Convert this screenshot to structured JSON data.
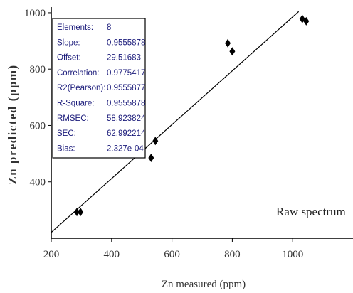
{
  "chart_data": {
    "type": "scatter",
    "xlabel": "Zn measured (ppm)",
    "ylabel": "Zn predicted (ppm)",
    "xlim": [
      200,
      1200
    ],
    "ylim": [
      200,
      1020
    ],
    "x_ticks": [
      "200",
      "400",
      "600",
      "800",
      "1000"
    ],
    "y_ticks": [
      "400",
      "600",
      "800",
      "1000"
    ],
    "points": [
      {
        "x": 285,
        "y": 293
      },
      {
        "x": 297,
        "y": 293
      },
      {
        "x": 531,
        "y": 485
      },
      {
        "x": 545,
        "y": 545
      },
      {
        "x": 785,
        "y": 892
      },
      {
        "x": 800,
        "y": 863
      },
      {
        "x": 1032,
        "y": 978
      },
      {
        "x": 1045,
        "y": 970
      }
    ],
    "regression_line": {
      "slope": 0.9555878,
      "offset": 29.51683
    },
    "stats_table": [
      {
        "key": "Elements:",
        "value": "8"
      },
      {
        "key": "Slope:",
        "value": "0.9555878"
      },
      {
        "key": "Offset:",
        "value": "29.51683"
      },
      {
        "key": "Correlation:",
        "value": "0.9775417"
      },
      {
        "key": "R2(Pearson):",
        "value": "0.9555877"
      },
      {
        "key": "R-Square:",
        "value": "0.9555878"
      },
      {
        "key": "RMSEC:",
        "value": "58.923824"
      },
      {
        "key": "SEC:",
        "value": "62.992214"
      },
      {
        "key": "Bias:",
        "value": "2.327e-04"
      }
    ],
    "annotation": "Raw spectrum",
    "marker_color": "#000000",
    "stats_text_color": "#1a1a7a",
    "grid": false
  }
}
